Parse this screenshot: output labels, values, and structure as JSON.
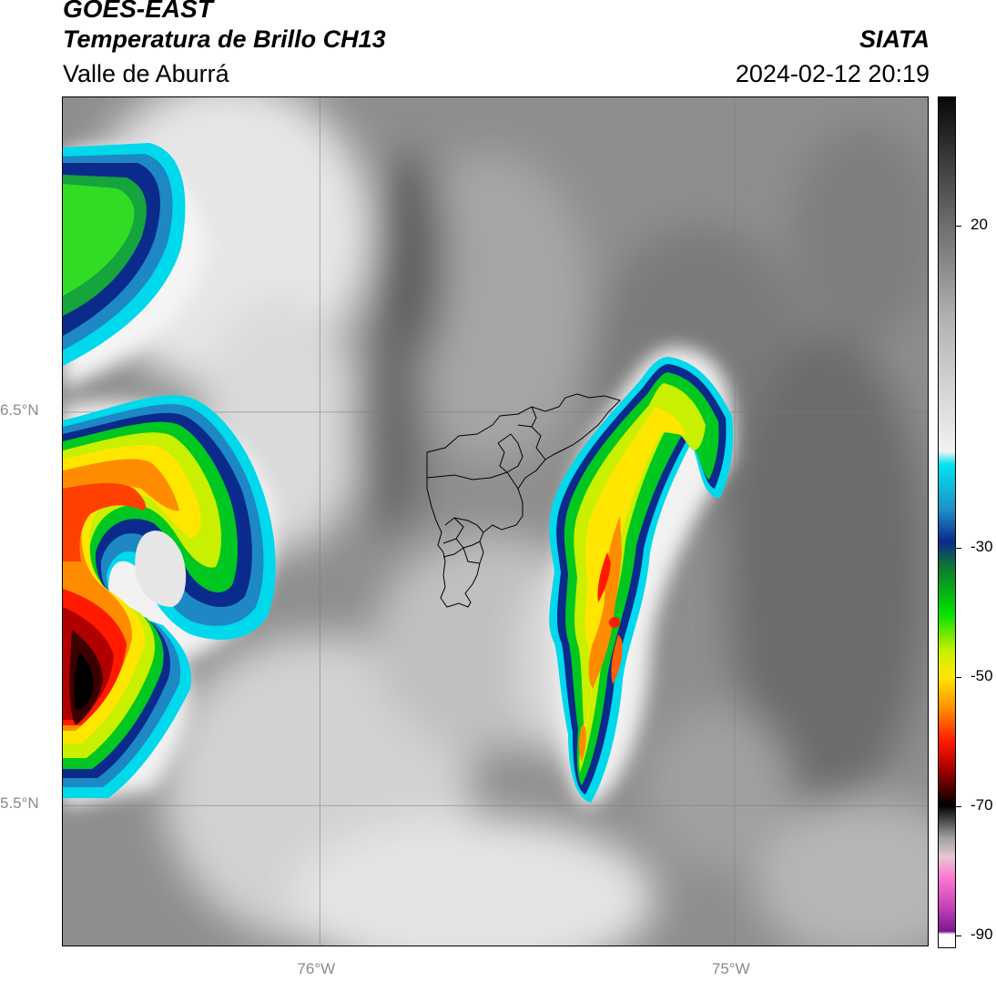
{
  "header": {
    "satellite": "GOES-EAST",
    "product": "Temperatura de Brillo CH13",
    "region": "Valle de Aburrá",
    "organization": "SIATA",
    "datetime": "2024-02-12 20:19"
  },
  "map": {
    "lat_labels": [
      {
        "value": 6.5,
        "text": "6.5°N"
      },
      {
        "value": 5.5,
        "text": "5.5°N"
      }
    ],
    "lon_labels": [
      {
        "value": -76,
        "text": "76°W"
      },
      {
        "value": -75,
        "text": "75°W"
      }
    ],
    "extent": {
      "lon_min": -76.62,
      "lon_max": -74.53,
      "lat_min": 5.14,
      "lat_max": 7.3
    }
  },
  "colorbar": {
    "vmin": -92,
    "vmax": 40,
    "ticks": [
      {
        "value": 20,
        "text": "20"
      },
      {
        "value": -30,
        "text": "-30"
      },
      {
        "value": -50,
        "text": "-50"
      },
      {
        "value": -70,
        "text": "-70"
      },
      {
        "value": -90,
        "text": "-90"
      }
    ],
    "color_stops": [
      {
        "value": 40,
        "color": "#080808"
      },
      {
        "value": 30,
        "color": "#3c3c3c"
      },
      {
        "value": 20,
        "color": "#6e6e6e"
      },
      {
        "value": 5,
        "color": "#b4b4b4"
      },
      {
        "value": -15,
        "color": "#f2f2f2"
      },
      {
        "value": -17,
        "color": "#00e5f0"
      },
      {
        "value": -24,
        "color": "#1e90c8"
      },
      {
        "value": -29,
        "color": "#0a2a8c"
      },
      {
        "value": -33,
        "color": "#0e7a30"
      },
      {
        "value": -40,
        "color": "#00e000"
      },
      {
        "value": -46,
        "color": "#c8f000"
      },
      {
        "value": -50,
        "color": "#ffe600"
      },
      {
        "value": -55,
        "color": "#ff8c00"
      },
      {
        "value": -60,
        "color": "#ff1a00"
      },
      {
        "value": -64,
        "color": "#b00000"
      },
      {
        "value": -68,
        "color": "#3c0000"
      },
      {
        "value": -70,
        "color": "#000000"
      },
      {
        "value": -75,
        "color": "#a0a0a0"
      },
      {
        "value": -78,
        "color": "#e6c8d2"
      },
      {
        "value": -81,
        "color": "#ff7ad2"
      },
      {
        "value": -86,
        "color": "#c040b4"
      },
      {
        "value": -89.5,
        "color": "#7a1690"
      },
      {
        "value": -90,
        "color": "#ffffff"
      },
      {
        "value": -92,
        "color": "#ffffff"
      }
    ]
  }
}
